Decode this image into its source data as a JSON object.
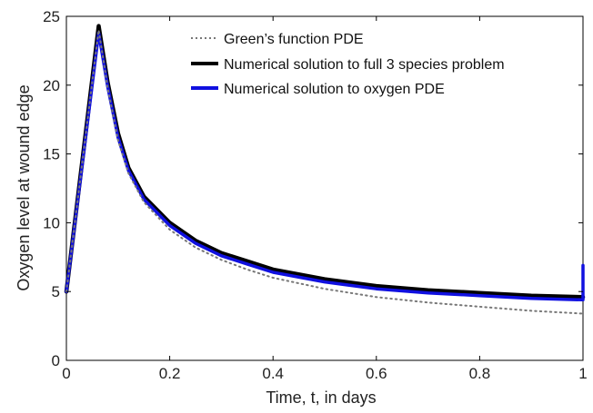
{
  "chart_data": {
    "type": "line",
    "title": "",
    "xlabel": "Time, t, in days",
    "ylabel": "Oxygen level at wound edge",
    "xlim": [
      0,
      1
    ],
    "ylim": [
      0,
      25
    ],
    "x_ticks": [
      0,
      0.2,
      0.4,
      0.6,
      0.8,
      1
    ],
    "y_ticks": [
      0,
      5,
      10,
      15,
      20,
      25
    ],
    "x_tick_labels": [
      "0",
      "0.2",
      "0.4",
      "0.6",
      "0.8",
      "1"
    ],
    "y_tick_labels": [
      "0",
      "5",
      "10",
      "15",
      "20",
      "25"
    ],
    "grid": false,
    "legend_position": "top-right",
    "series": [
      {
        "name": "Green’s function PDE",
        "color": "#777777",
        "style": "dotted",
        "x": [
          0,
          0.0625,
          0.08,
          0.1,
          0.12,
          0.15,
          0.2,
          0.25,
          0.3,
          0.35,
          0.4,
          0.5,
          0.6,
          0.7,
          0.8,
          0.9,
          1.0
        ],
        "y": [
          5.0,
          24.0,
          19.8,
          16.0,
          13.6,
          11.5,
          9.5,
          8.2,
          7.3,
          6.6,
          6.0,
          5.2,
          4.6,
          4.2,
          3.9,
          3.6,
          3.4
        ]
      },
      {
        "name": "Numerical solution to full 3 species problem",
        "color": "#000000",
        "style": "solid",
        "x": [
          0,
          0.0625,
          0.08,
          0.1,
          0.12,
          0.15,
          0.2,
          0.25,
          0.3,
          0.35,
          0.4,
          0.5,
          0.6,
          0.7,
          0.8,
          0.9,
          1.0
        ],
        "y": [
          5.0,
          24.3,
          20.2,
          16.5,
          14.0,
          11.9,
          10.0,
          8.7,
          7.8,
          7.2,
          6.6,
          5.9,
          5.4,
          5.1,
          4.9,
          4.7,
          4.6
        ]
      },
      {
        "name": "Numerical solution to oxygen PDE",
        "color": "#1010e0",
        "style": "solid",
        "x": [
          0,
          0.0625,
          0.08,
          0.1,
          0.12,
          0.15,
          0.2,
          0.25,
          0.3,
          0.35,
          0.4,
          0.5,
          0.6,
          0.7,
          0.8,
          0.9,
          0.998,
          1.0,
          1.0
        ],
        "y": [
          5.0,
          23.8,
          19.9,
          16.2,
          13.8,
          11.7,
          9.8,
          8.5,
          7.6,
          7.0,
          6.4,
          5.7,
          5.2,
          4.9,
          4.7,
          4.5,
          4.4,
          4.4,
          6.9
        ]
      }
    ]
  }
}
